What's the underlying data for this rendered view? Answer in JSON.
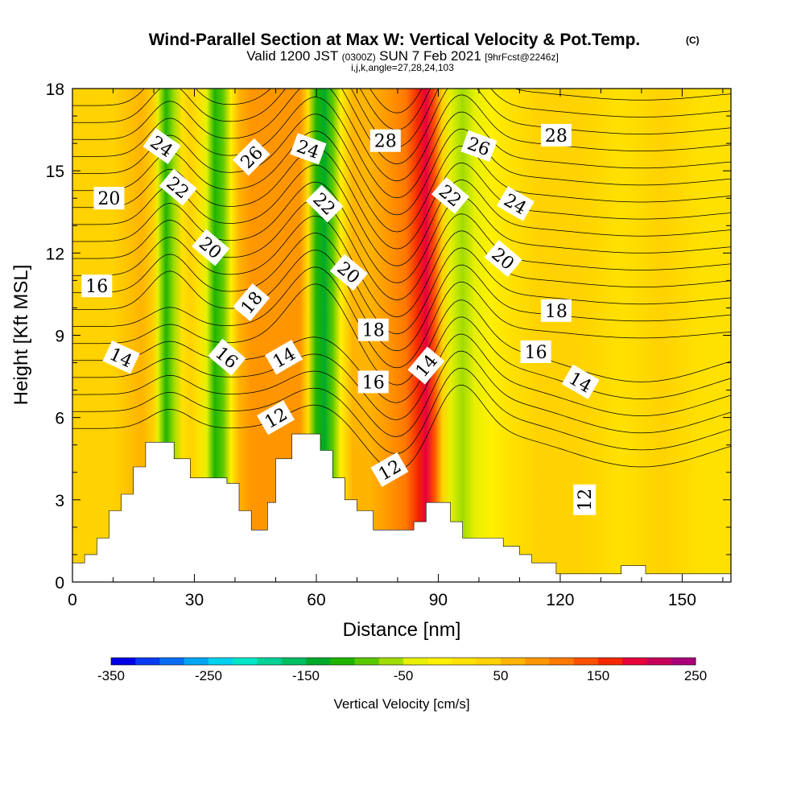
{
  "title": {
    "main": "Wind-Parallel Section at Max W: Vertical Velocity & Pot.Temp.",
    "copyright": "(C)",
    "valid_prefix": "Valid 1200 JST",
    "valid_utc": "(0300Z)",
    "valid_date": "SUN 7 Feb 2021",
    "forecast": "[9hrFcst@2246z]",
    "indices": "i,j,k,angle=27,28,24,103"
  },
  "chart_data": {
    "type": "heatmap",
    "xlabel": "Distance [nm]",
    "ylabel": "Height [Kft MSL]",
    "xlim": [
      0,
      162
    ],
    "ylim": [
      0,
      18
    ],
    "x_ticks": [
      0,
      30,
      60,
      90,
      120,
      150
    ],
    "y_ticks": [
      0,
      3,
      6,
      9,
      12,
      15,
      18
    ],
    "colorbar": {
      "label": "Vertical Velocity [cm/s]",
      "tick_labels": [
        "-350",
        "-250",
        "-150",
        "-50",
        "50",
        "150",
        "250"
      ],
      "tick_values": [
        -350,
        -250,
        -150,
        -50,
        50,
        150,
        250
      ],
      "levels": [
        -350,
        -325,
        -300,
        -275,
        -250,
        -225,
        -200,
        -175,
        -150,
        -125,
        -100,
        -75,
        -50,
        -25,
        0,
        25,
        50,
        75,
        100,
        125,
        150,
        175,
        200,
        225,
        250
      ],
      "colors": [
        "#0000e6",
        "#0a3cf5",
        "#0a6ef5",
        "#00a5f5",
        "#00d2f0",
        "#00e6c8",
        "#00d296",
        "#00be64",
        "#00aa2a",
        "#1eb400",
        "#5ac800",
        "#a0dc00",
        "#e6f000",
        "#fff000",
        "#ffe100",
        "#ffd200",
        "#ffb400",
        "#ff9600",
        "#ff7800",
        "#ff5000",
        "#f52800",
        "#e6003c",
        "#c8005a",
        "#aa0078",
        "#8c00a0"
      ]
    },
    "field_columns": [
      {
        "x": 0,
        "w": 40
      },
      {
        "x": 4,
        "w": 45
      },
      {
        "x": 10,
        "w": 48
      },
      {
        "x": 17,
        "w": 55
      },
      {
        "x": 20,
        "w": 30
      },
      {
        "x": 21,
        "w": -30
      },
      {
        "x": 23,
        "w": -110
      },
      {
        "x": 25,
        "w": -60
      },
      {
        "x": 27,
        "w": 10
      },
      {
        "x": 29,
        "w": 30
      },
      {
        "x": 31,
        "w": 5
      },
      {
        "x": 33,
        "w": -50
      },
      {
        "x": 35,
        "w": -120
      },
      {
        "x": 37,
        "w": -80
      },
      {
        "x": 39,
        "w": -10
      },
      {
        "x": 41,
        "w": 60
      },
      {
        "x": 44,
        "w": 80
      },
      {
        "x": 48,
        "w": 90
      },
      {
        "x": 52,
        "w": 95
      },
      {
        "x": 56,
        "w": 80
      },
      {
        "x": 58,
        "w": 10
      },
      {
        "x": 60,
        "w": -110
      },
      {
        "x": 62,
        "w": -150
      },
      {
        "x": 64,
        "w": -80
      },
      {
        "x": 66,
        "w": -10
      },
      {
        "x": 69,
        "w": 50
      },
      {
        "x": 73,
        "w": 70
      },
      {
        "x": 78,
        "w": 80
      },
      {
        "x": 82,
        "w": 100
      },
      {
        "x": 85,
        "w": 150
      },
      {
        "x": 87,
        "w": 180
      },
      {
        "x": 89,
        "w": 140
      },
      {
        "x": 91,
        "w": 40
      },
      {
        "x": 93,
        "w": -50
      },
      {
        "x": 96,
        "w": -70
      },
      {
        "x": 99,
        "w": -40
      },
      {
        "x": 103,
        "w": -10
      },
      {
        "x": 108,
        "w": 10
      },
      {
        "x": 115,
        "w": 30
      },
      {
        "x": 125,
        "w": 35
      },
      {
        "x": 135,
        "w": 20
      },
      {
        "x": 145,
        "w": 25
      },
      {
        "x": 155,
        "w": 20
      },
      {
        "x": 162,
        "w": 20
      }
    ],
    "terrain": [
      [
        0,
        0.7
      ],
      [
        3,
        0.7
      ],
      [
        3,
        1.0
      ],
      [
        6,
        1.0
      ],
      [
        6,
        1.6
      ],
      [
        9,
        1.6
      ],
      [
        9,
        2.6
      ],
      [
        12,
        2.6
      ],
      [
        12,
        3.2
      ],
      [
        15,
        3.2
      ],
      [
        15,
        4.2
      ],
      [
        18,
        4.2
      ],
      [
        18,
        5.1
      ],
      [
        25,
        5.1
      ],
      [
        25,
        4.5
      ],
      [
        29,
        4.5
      ],
      [
        29,
        3.8
      ],
      [
        38,
        3.8
      ],
      [
        38,
        3.6
      ],
      [
        41,
        3.6
      ],
      [
        41,
        2.6
      ],
      [
        44,
        2.6
      ],
      [
        44,
        1.9
      ],
      [
        48,
        1.9
      ],
      [
        48,
        2.9
      ],
      [
        50,
        2.9
      ],
      [
        50,
        4.5
      ],
      [
        54,
        4.5
      ],
      [
        54,
        5.4
      ],
      [
        61,
        5.4
      ],
      [
        61,
        4.8
      ],
      [
        64,
        4.8
      ],
      [
        64,
        3.8
      ],
      [
        67,
        3.8
      ],
      [
        67,
        3.0
      ],
      [
        70,
        3.0
      ],
      [
        70,
        2.6
      ],
      [
        74,
        2.6
      ],
      [
        74,
        1.9
      ],
      [
        84,
        1.9
      ],
      [
        84,
        2.2
      ],
      [
        87,
        2.2
      ],
      [
        87,
        2.9
      ],
      [
        93,
        2.9
      ],
      [
        93,
        2.2
      ],
      [
        96,
        2.2
      ],
      [
        96,
        1.6
      ],
      [
        106,
        1.6
      ],
      [
        106,
        1.3
      ],
      [
        110,
        1.3
      ],
      [
        110,
        1.0
      ],
      [
        113,
        1.0
      ],
      [
        113,
        0.7
      ],
      [
        119,
        0.7
      ],
      [
        119,
        0.3
      ],
      [
        135,
        0.3
      ],
      [
        135,
        0.6
      ],
      [
        141,
        0.6
      ],
      [
        141,
        0.3
      ],
      [
        162,
        0.3
      ]
    ],
    "contour_levels": [
      10,
      11,
      12,
      13,
      14,
      15,
      16,
      17,
      18,
      19,
      20,
      21,
      22,
      23,
      24,
      25,
      26,
      27,
      28,
      29,
      30,
      31
    ],
    "contour_labels": [
      {
        "text": "24",
        "x": 22,
        "y": 15.9,
        "angle": 35
      },
      {
        "text": "22",
        "x": 26,
        "y": 14.4,
        "angle": 40
      },
      {
        "text": "20",
        "x": 9,
        "y": 14.0,
        "angle": 0
      },
      {
        "text": "20",
        "x": 34,
        "y": 12.2,
        "angle": 40
      },
      {
        "text": "16",
        "x": 6,
        "y": 10.8,
        "angle": 0
      },
      {
        "text": "18",
        "x": 44,
        "y": 10.2,
        "angle": -50
      },
      {
        "text": "14",
        "x": 12,
        "y": 8.2,
        "angle": 25
      },
      {
        "text": "16",
        "x": 38,
        "y": 8.2,
        "angle": 40
      },
      {
        "text": "14",
        "x": 52,
        "y": 8.2,
        "angle": -30
      },
      {
        "text": "12",
        "x": 50,
        "y": 6.0,
        "angle": -30
      },
      {
        "text": "26",
        "x": 44,
        "y": 15.5,
        "angle": -45
      },
      {
        "text": "24",
        "x": 58,
        "y": 15.8,
        "angle": 20
      },
      {
        "text": "22",
        "x": 62,
        "y": 13.8,
        "angle": 45
      },
      {
        "text": "20",
        "x": 68,
        "y": 11.3,
        "angle": 40
      },
      {
        "text": "18",
        "x": 74,
        "y": 9.2,
        "angle": 0
      },
      {
        "text": "16",
        "x": 74,
        "y": 7.3,
        "angle": 0
      },
      {
        "text": "28",
        "x": 77,
        "y": 16.1,
        "angle": 0
      },
      {
        "text": "12",
        "x": 78,
        "y": 4.1,
        "angle": -30
      },
      {
        "text": "14",
        "x": 87,
        "y": 7.9,
        "angle": -50
      },
      {
        "text": "26",
        "x": 100,
        "y": 15.9,
        "angle": 20
      },
      {
        "text": "22",
        "x": 93,
        "y": 14.1,
        "angle": 40
      },
      {
        "text": "24",
        "x": 109,
        "y": 13.8,
        "angle": 30
      },
      {
        "text": "20",
        "x": 106,
        "y": 11.8,
        "angle": 40
      },
      {
        "text": "18",
        "x": 119,
        "y": 9.9,
        "angle": 0
      },
      {
        "text": "16",
        "x": 114,
        "y": 8.4,
        "angle": 0
      },
      {
        "text": "14",
        "x": 125,
        "y": 7.3,
        "angle": 30
      },
      {
        "text": "12",
        "x": 126,
        "y": 3.0,
        "angle": -90
      },
      {
        "text": "28",
        "x": 119,
        "y": 16.3,
        "angle": 0
      }
    ]
  }
}
